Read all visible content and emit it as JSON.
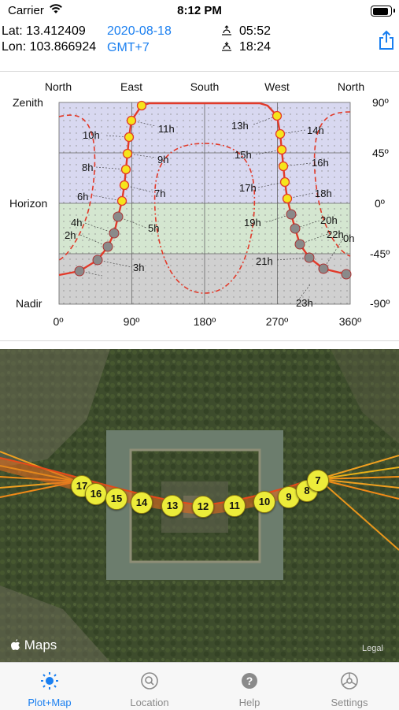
{
  "status_bar": {
    "carrier": "Carrier",
    "time": "8:12 PM",
    "battery_level": 0.92
  },
  "header": {
    "lat_label": "Lat: 13.412409",
    "lon_label": "Lon: 103.866924",
    "date": "2020-08-18",
    "timezone": "GMT+7",
    "sunrise": "05:52",
    "sunset": "18:24",
    "sunrise_icon": "sunrise-icon",
    "sunset_icon": "sunset-icon",
    "share_icon": "share-icon"
  },
  "sun_plot": {
    "top_labels": [
      "North",
      "East",
      "South",
      "West",
      "North"
    ],
    "left_labels": [
      "Zenith",
      "Horizon",
      "Nadir"
    ],
    "right_labels": [
      "90º",
      "45º",
      "0º",
      "-45º",
      "-90º"
    ],
    "bottom_labels": [
      "0º",
      "90º",
      "180º",
      "270º",
      "360º"
    ],
    "hour_labels": [
      "11h",
      "10h",
      "9h",
      "8h",
      "7h",
      "6h",
      "5h",
      "4h",
      "2h",
      "3h",
      "13h",
      "14h",
      "15h",
      "16h",
      "17h",
      "18h",
      "19h",
      "20h",
      "22h",
      "0h",
      "21h",
      "23h"
    ],
    "colors": {
      "sky_above": "#d8d8f0",
      "sky_below": "#d4e6d0",
      "below_horizon": "#d0d0d0",
      "sun_path": "#e23a2a",
      "sun_point": "#f5e51b"
    }
  },
  "map": {
    "attribution": "Maps",
    "legal": "Legal",
    "hour_markers": [
      "17",
      "16",
      "15",
      "14",
      "13",
      "12",
      "11",
      "10",
      "9",
      "8",
      "7"
    ]
  },
  "tabs": [
    {
      "label": "Plot+Map",
      "icon": "sun-icon",
      "active": true
    },
    {
      "label": "Location",
      "icon": "search-icon",
      "active": false
    },
    {
      "label": "Help",
      "icon": "help-icon",
      "active": false
    },
    {
      "label": "Settings",
      "icon": "settings-icon",
      "active": false
    }
  ]
}
